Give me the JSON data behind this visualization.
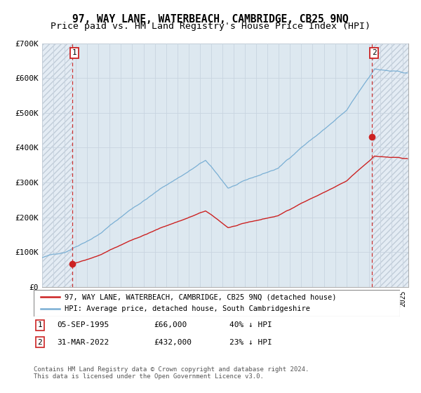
{
  "title": "97, WAY LANE, WATERBEACH, CAMBRIDGE, CB25 9NQ",
  "subtitle": "Price paid vs. HM Land Registry's House Price Index (HPI)",
  "ylim": [
    0,
    700000
  ],
  "yticks": [
    0,
    100000,
    200000,
    300000,
    400000,
    500000,
    600000,
    700000
  ],
  "ytick_labels": [
    "£0",
    "£100K",
    "£200K",
    "£300K",
    "£400K",
    "£500K",
    "£600K",
    "£700K"
  ],
  "sale1_date_num": 1995.67,
  "sale1_price": 66000,
  "sale2_date_num": 2022.25,
  "sale2_price": 432000,
  "hpi_line_color": "#7aafd4",
  "price_line_color": "#cc2222",
  "sale_marker_color": "#cc2222",
  "grid_color": "#c8d4e0",
  "hatch_facecolor": "#e4ecf4",
  "hatch_edgecolor": "#c0ccd8",
  "legend_label1": "97, WAY LANE, WATERBEACH, CAMBRIDGE, CB25 9NQ (detached house)",
  "legend_label2": "HPI: Average price, detached house, South Cambridgeshire",
  "note1_date": "05-SEP-1995",
  "note1_price": "£66,000",
  "note1_hpi": "40% ↓ HPI",
  "note2_date": "31-MAR-2022",
  "note2_price": "£432,000",
  "note2_hpi": "23% ↓ HPI",
  "footer": "Contains HM Land Registry data © Crown copyright and database right 2024.\nThis data is licensed under the Open Government Licence v3.0.",
  "title_fontsize": 10.5,
  "subtitle_fontsize": 9.5,
  "xlim_left": 1993.0,
  "xlim_right": 2025.5
}
